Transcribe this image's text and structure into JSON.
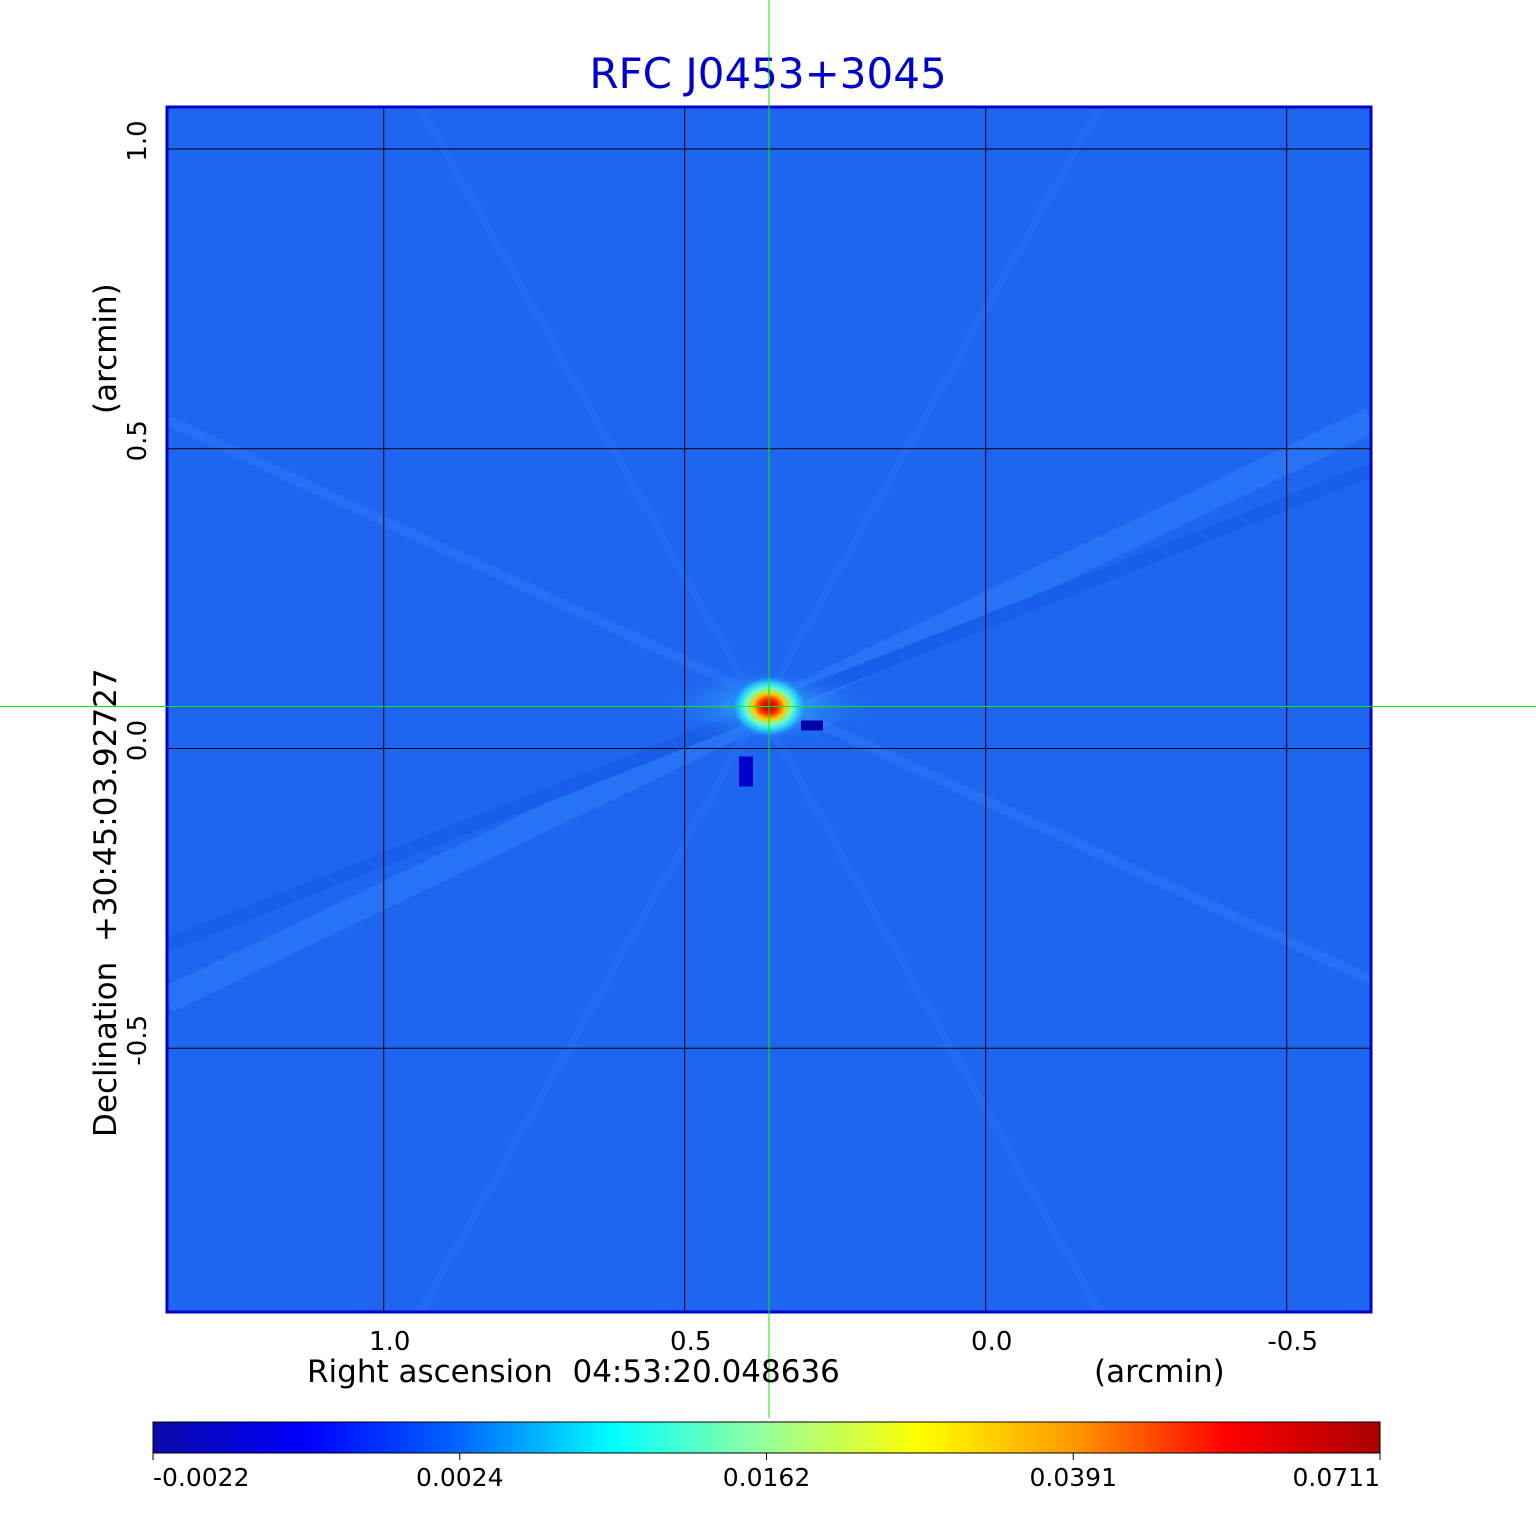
{
  "chart_data": {
    "type": "heatmap",
    "title": "RFC J0453+3045",
    "xlabel": "Right ascension  04:53:20.048636",
    "xlabel_unit": "(arcmin)",
    "ylabel": "Declination  +30:45:03.92727",
    "ylabel_unit": "(arcmin)",
    "x_ticks": [
      {
        "value": 1.0,
        "label": "1.0"
      },
      {
        "value": 0.5,
        "label": "0.5"
      },
      {
        "value": 0.0,
        "label": "0.0"
      },
      {
        "value": -0.5,
        "label": "-0.5"
      }
    ],
    "y_ticks": [
      {
        "value": 1.0,
        "label": "1.0"
      },
      {
        "value": 0.5,
        "label": "0.5"
      },
      {
        "value": 0.0,
        "label": "0.0"
      },
      {
        "value": -0.5,
        "label": "-0.5"
      }
    ],
    "xlim": [
      1.36,
      -0.64
    ],
    "ylim": [
      -0.94,
      1.07
    ],
    "x_reversed": true,
    "grid": true,
    "source_peak": {
      "x": 0.36,
      "y": 0.07,
      "value": 0.0711
    },
    "crosshair": {
      "x": 0.36,
      "y": 0.07
    },
    "colorbar": {
      "colors": [
        "#0a0aa8",
        "#0000ff",
        "#0066ff",
        "#00ffff",
        "#99ff99",
        "#ffff00",
        "#ff9900",
        "#ff0000",
        "#aa0000"
      ],
      "tick_labels": [
        "-0.0022",
        "0.0024",
        "0.0162",
        "0.0391",
        "0.0711"
      ],
      "vmin": -0.0022,
      "vmax": 0.0711
    },
    "colors": {
      "background_map": "#1e66f0",
      "frame": "#0000cc",
      "title": "#0000cc",
      "grid": "#000000",
      "crosshair": "#00ff00"
    }
  }
}
